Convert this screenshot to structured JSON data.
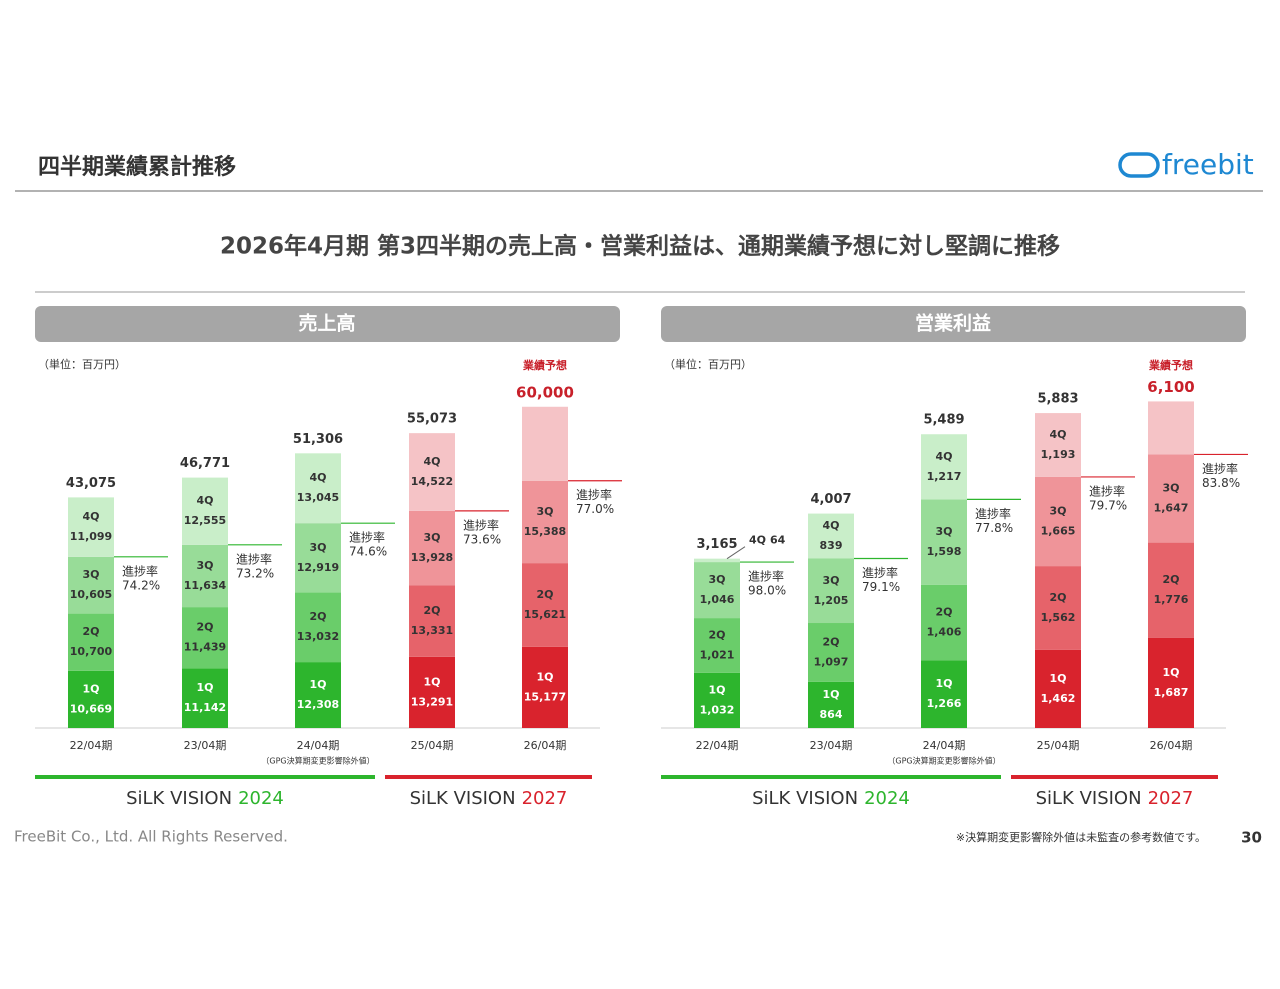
{
  "header": {
    "title": "四半期業績累計推移",
    "logo": "freebit",
    "subtitle": "2026年4月期 第3四半期の売上高・営業利益は、通期業績予想に対し堅調に推移"
  },
  "footer": {
    "copyright": "FreeBit Co., Ltd. All Rights Reserved.",
    "note": "※決算期変更影響除外値は未監査の参考数値です。",
    "page": "30"
  },
  "visions": [
    {
      "name": "SiLK VISION",
      "year": "2024",
      "color": "#2db52d"
    },
    {
      "name": "SiLK VISION",
      "year": "2027",
      "color": "#d9232d"
    }
  ],
  "chart_data": [
    {
      "type": "bar",
      "stacked": true,
      "title": "売上高",
      "unit": "（単位：百万円）",
      "forecast_label": "業績予想",
      "category_note": "（GPG決算期変更影響除外値）",
      "categories": [
        "22/04期",
        "23/04期",
        "24/04期",
        "25/04期",
        "26/04期"
      ],
      "ylim": [
        0,
        65000
      ],
      "series": [
        {
          "name": "1Q",
          "colors": [
            "#2db52d",
            "#2db52d",
            "#2db52d",
            "#d9232d",
            "#d9232d"
          ],
          "values": [
            10669,
            11142,
            12308,
            13291,
            15177
          ],
          "value_labels": [
            "10,669",
            "11,142",
            "12,308",
            "13,291",
            "15,177"
          ]
        },
        {
          "name": "2Q",
          "colors": [
            "#6acd6a",
            "#6acd6a",
            "#6acd6a",
            "#e6636a",
            "#e6636a"
          ],
          "values": [
            10700,
            11439,
            13032,
            13331,
            15621
          ],
          "value_labels": [
            "10,700",
            "11,439",
            "13,032",
            "13,331",
            "15,621"
          ]
        },
        {
          "name": "3Q",
          "colors": [
            "#98dc98",
            "#98dc98",
            "#98dc98",
            "#ef9499",
            "#ef9499"
          ],
          "values": [
            10605,
            11634,
            12919,
            13928,
            15388
          ],
          "value_labels": [
            "10,605",
            "11,634",
            "12,919",
            "13,928",
            "15,388"
          ]
        },
        {
          "name": "4Q",
          "colors": [
            "#c9eec9",
            "#c9eec9",
            "#c9eec9",
            "#f5c3c6",
            "#f5c3c6"
          ],
          "values": [
            11099,
            12555,
            13045,
            14522,
            13814
          ],
          "value_labels": [
            "11,099",
            "12,555",
            "13,045",
            "14,522",
            null
          ]
        }
      ],
      "totals": [
        43075,
        46771,
        51306,
        55073,
        60000
      ],
      "total_labels": [
        "43,075",
        "46,771",
        "51,306",
        "55,073",
        "60,000"
      ],
      "progress": {
        "label": "進捗率",
        "values": [
          74.2,
          73.2,
          74.6,
          73.6,
          77.0
        ],
        "value_labels": [
          "74.2%",
          "73.2%",
          "74.6%",
          "73.6%",
          "77.0%"
        ]
      }
    },
    {
      "type": "bar",
      "stacked": true,
      "title": "営業利益",
      "unit": "（単位：百万円）",
      "forecast_label": "業績予想",
      "category_note": "（GPG決算期変更影響除外値）",
      "categories": [
        "22/04期",
        "23/04期",
        "24/04期",
        "25/04期",
        "26/04期"
      ],
      "ylim": [
        0,
        6500
      ],
      "series": [
        {
          "name": "1Q",
          "colors": [
            "#2db52d",
            "#2db52d",
            "#2db52d",
            "#d9232d",
            "#d9232d"
          ],
          "values": [
            1032,
            864,
            1266,
            1462,
            1687
          ],
          "value_labels": [
            "1,032",
            "864",
            "1,266",
            "1,462",
            "1,687"
          ]
        },
        {
          "name": "2Q",
          "colors": [
            "#6acd6a",
            "#6acd6a",
            "#6acd6a",
            "#e6636a",
            "#e6636a"
          ],
          "values": [
            1021,
            1097,
            1406,
            1562,
            1776
          ],
          "value_labels": [
            "1,021",
            "1,097",
            "1,406",
            "1,562",
            "1,776"
          ]
        },
        {
          "name": "3Q",
          "colors": [
            "#98dc98",
            "#98dc98",
            "#98dc98",
            "#ef9499",
            "#ef9499"
          ],
          "values": [
            1046,
            1205,
            1598,
            1665,
            1647
          ],
          "value_labels": [
            "1,046",
            "1,205",
            "1,598",
            "1,665",
            "1,647"
          ]
        },
        {
          "name": "4Q",
          "colors": [
            "#c9eec9",
            "#c9eec9",
            "#c9eec9",
            "#f5c3c6",
            "#f5c3c6"
          ],
          "values": [
            64,
            839,
            1217,
            1193,
            990
          ],
          "value_labels": [
            "64",
            "839",
            "1,217",
            "1,193",
            null
          ]
        }
      ],
      "totals": [
        3165,
        4007,
        5489,
        5883,
        6100
      ],
      "total_labels": [
        "3,165",
        "4,007",
        "5,489",
        "5,883",
        "6,100"
      ],
      "progress": {
        "label": "進捗率",
        "values": [
          98.0,
          79.1,
          77.8,
          79.7,
          83.8
        ],
        "value_labels": [
          "98.0%",
          "79.1%",
          "77.8%",
          "79.7%",
          "83.8%"
        ]
      }
    }
  ]
}
